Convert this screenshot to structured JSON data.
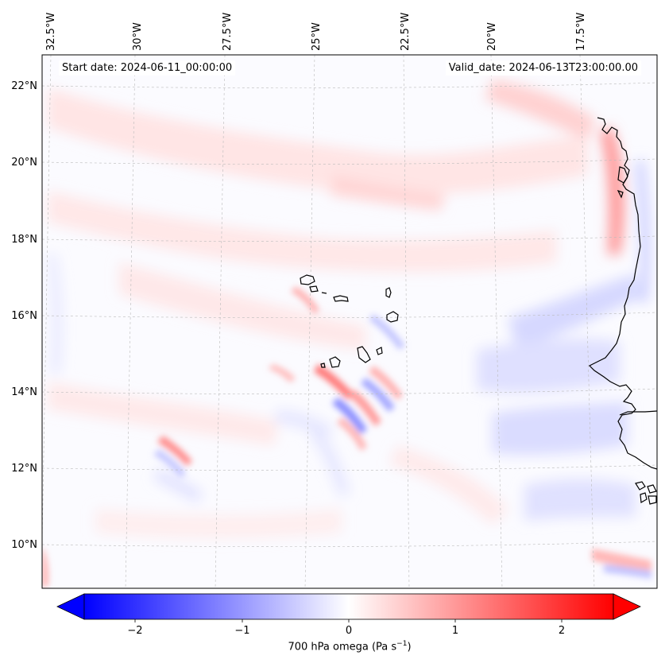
{
  "annotations": {
    "start_date": "Start date: 2024-06-11_00:00:00",
    "valid_date": "Valid_date: 2024-06-13T23:00:00.00"
  },
  "map": {
    "variable": "700 hPa omega",
    "units": "Pa s",
    "units_exponent": "−1",
    "lon_range": [
      -33.5,
      -15.5
    ],
    "lat_range": [
      8.8,
      22.8
    ],
    "lon_ticks": [
      "32.5°W",
      "30°W",
      "27.5°W",
      "25°W",
      "22.5°W",
      "20°W",
      "17.5°W"
    ],
    "lat_ticks": [
      "22°N",
      "20°N",
      "18°N",
      "16°N",
      "14°N",
      "12°N",
      "10°N"
    ],
    "gridlines": true,
    "colormap": "bwr",
    "colors": {
      "min": "#0000ff",
      "mid": "#ffffff",
      "max": "#ff0000",
      "coastline": "#000000",
      "grid": "#bbbbbb"
    }
  },
  "colorbar": {
    "range": [
      -2.6,
      2.6
    ],
    "ticks": [
      "−2",
      "−1",
      "0",
      "1",
      "2"
    ],
    "tick_values": [
      -2,
      -1,
      0,
      1,
      2
    ],
    "extend": "both",
    "label": "700 hPa omega (Pa s",
    "label_exp": "−1",
    "label_close": ")"
  }
}
